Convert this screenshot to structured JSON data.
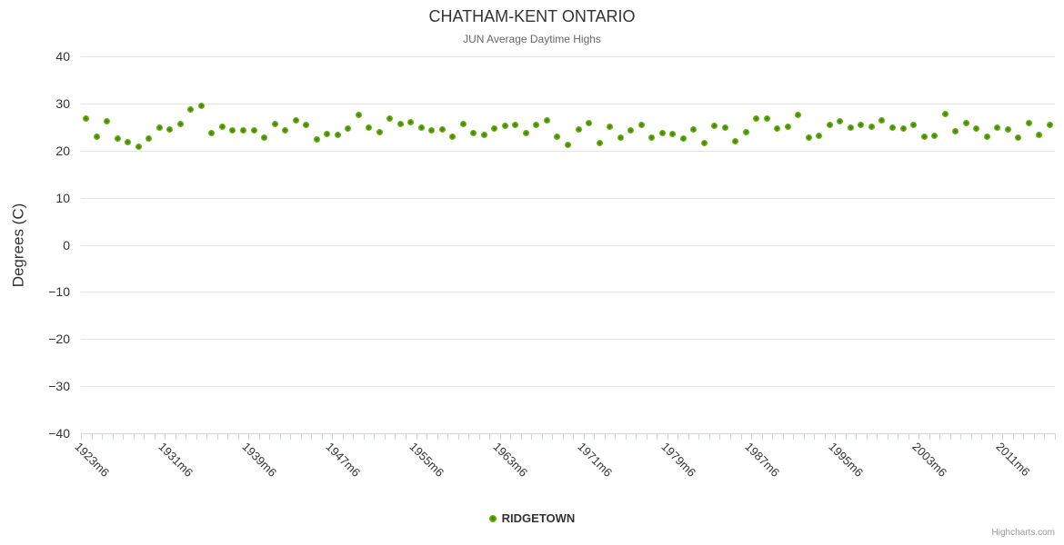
{
  "title": "CHATHAM-KENT ONTARIO",
  "subtitle": "JUN Average Daytime Highs",
  "credits": "Highcharts.com",
  "colors": {
    "marker_green": "#6fbb14",
    "marker_green_dark": "#44760d",
    "grid": "#e6e6e6",
    "axis_line": "#ccd6eb",
    "title_text": "#333333",
    "subtitle_text": "#666666",
    "credits_text": "#999999"
  },
  "chart_data": {
    "type": "scatter",
    "title": "CHATHAM-KENT ONTARIO",
    "subtitle": "JUN Average Daytime Highs",
    "xlabel": "",
    "ylabel": "Degrees (C)",
    "ylim": [
      -40,
      40
    ],
    "y_tick_step": 10,
    "grid": true,
    "legend_position": "bottom-center",
    "x_years": {
      "start": 1923,
      "end": 2015,
      "suffix": "m6"
    },
    "x_label_every": 8,
    "x_label_rotation": 45,
    "x_tick_labels": [
      "1923m6",
      "1931m6",
      "1939m6",
      "1947m6",
      "1955m6",
      "1963m6",
      "1971m6",
      "1979m6",
      "1987m6",
      "1995m6",
      "2003m6",
      "2011m6"
    ],
    "series": [
      {
        "name": "RIDGETOWN",
        "color": "#6fbb14",
        "marker": "circle",
        "values": [
          26.7,
          22.9,
          26.2,
          22.5,
          21.7,
          20.9,
          22.5,
          24.8,
          24.4,
          25.7,
          28.7,
          29.4,
          23.7,
          25.1,
          24.2,
          24.3,
          24.2,
          22.7,
          25.6,
          24.3,
          26.4,
          25.4,
          22.3,
          23.5,
          23.4,
          24.6,
          27.5,
          24.9,
          23.9,
          26.7,
          25.6,
          26.1,
          24.8,
          24.3,
          24.5,
          22.9,
          25.7,
          23.7,
          23.3,
          24.6,
          25.3,
          25.5,
          23.8,
          25.5,
          26.4,
          23.0,
          21.2,
          24.4,
          25.9,
          21.6,
          25.1,
          22.7,
          24.3,
          25.5,
          22.7,
          23.8,
          23.5,
          22.5,
          24.4,
          21.6,
          25.3,
          24.9,
          21.9,
          24.0,
          26.7,
          26.7,
          24.6,
          25.1,
          27.6,
          22.7,
          23.2,
          25.5,
          26.2,
          24.8,
          25.5,
          25.0,
          26.4,
          24.8,
          24.7,
          25.4,
          22.9,
          23.2,
          27.8,
          24.1,
          25.9,
          24.6,
          23.0,
          24.9,
          24.4,
          22.7,
          25.8,
          23.4,
          25.4
        ]
      }
    ]
  }
}
